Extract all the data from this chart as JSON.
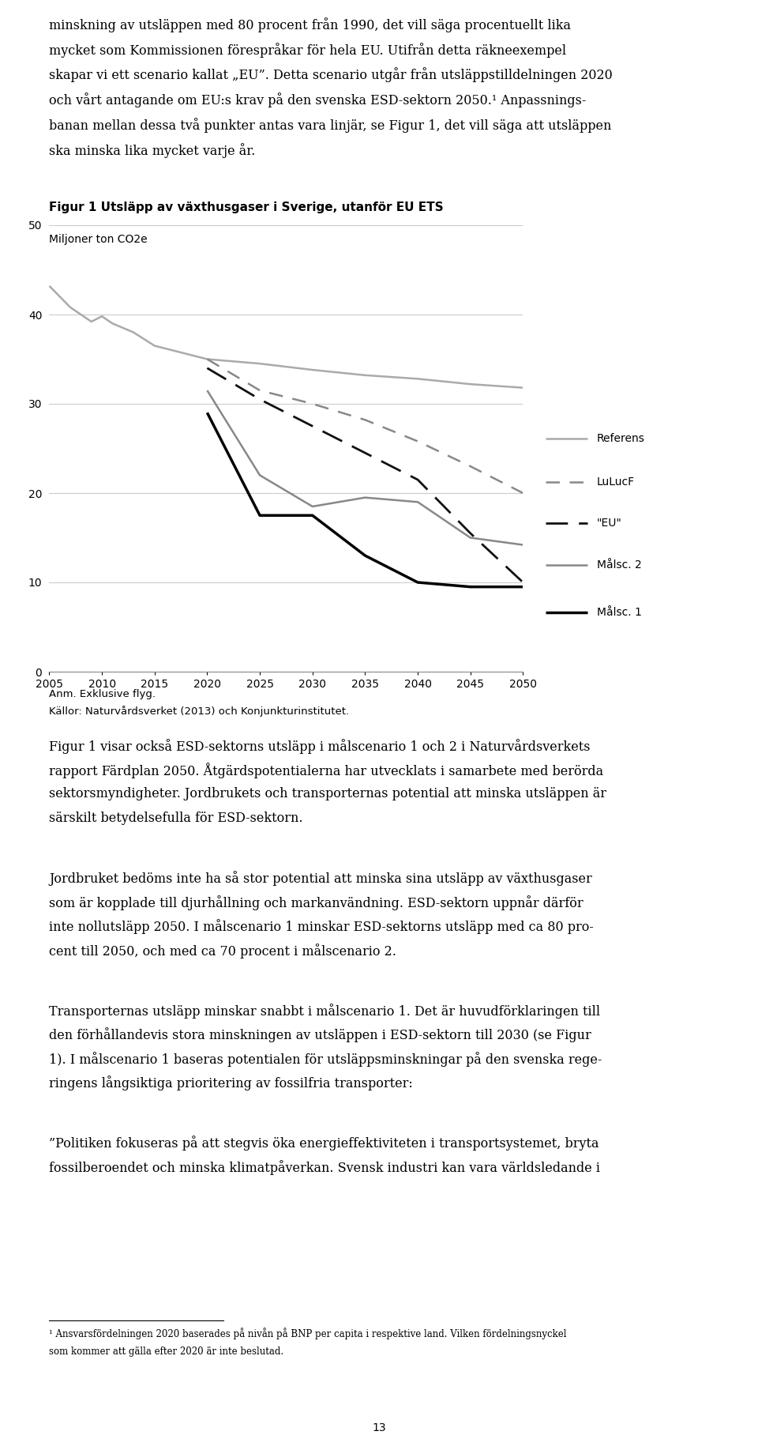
{
  "title": "Figur 1 Utsläpp av växthusgaser i Sverige, utanför EU ETS",
  "ylabel": "Miljoner ton CO2e",
  "note": "Anm. Exklusive flyg.",
  "source": "Källor: Naturvårdsverket (2013) och Konjunkturinstitutet.",
  "ylim": [
    0,
    50
  ],
  "xlim": [
    2005,
    2050
  ],
  "xticks": [
    2005,
    2010,
    2015,
    2020,
    2025,
    2030,
    2035,
    2040,
    2045,
    2050
  ],
  "yticks": [
    0,
    10,
    20,
    30,
    40,
    50
  ],
  "para_above": [
    "minskning av utsläppen med 80 procent från 1990, det vill säga procentuellt lika",
    "mycket som Kommissionen förespråkar för hela EU. Utifrån detta räkneexempel",
    "skapar vi ett scenario kallat „EU”. Detta scenario utgår från utsläppstilldelningen 2020",
    "och vårt antagande om EU:s krav på den svenska ESD-sektorn 2050.¹ Anpassnings-",
    "banan mellan dessa två punkter antas vara linjär, se Figur 1, det vill säga att utsläppen",
    "ska minska lika mycket varje år."
  ],
  "para_below_1": [
    "Figur 1 visar också ESD-sektorns utsläpp i målscenario 1 och 2 i Naturvårdsverkets",
    "rapport Färdplan 2050. Åtgärdspotentialerna har utvecklats i samarbete med berörda",
    "sektorsmyndigheter. Jordbrukets och transporternas potential att minska utsläppen är",
    "särskilt betydelsefulla för ESD-sektorn."
  ],
  "para_below_2": [
    "Jordbruket bedöms inte ha så stor potential att minska sina utsläpp av växthusgaser",
    "som är kopplade till djurhållning och markanvändning. ESD-sektorn uppnår därför",
    "inte nollutsläpp 2050. I målscenario 1 minskar ESD-sektorns utsläpp med ca 80 pro-",
    "cent till 2050, och med ca 70 procent i målscenario 2."
  ],
  "para_below_3": [
    "Transporternas utsläpp minskar snabbt i målscenario 1. Det är huvudförklaringen till",
    "den förhållandevis stora minskningen av utsläppen i ESD-sektorn till 2030 (se Figur",
    "1). I målscenario 1 baseras potentialen för utsläppsminskningar på den svenska rege-",
    "ringens långsiktiga prioritering av fossilfria transporter:"
  ],
  "para_below_4": [
    "”Politiken fokuseras på att stegvis öka energieffektiviteten i transportsystemet, bryta",
    "fossilberoendet och minska klimatpåverkan. Svensk industri kan vara världsledande i"
  ],
  "footnote": "¹ Ansvarsfördelningen 2020 baserades på nivån på BNP per capita i respektive land. Vilken fördelningsnyckel",
  "footnote2": "som kommer att gälla efter 2020 är inte beslutad.",
  "page_num": "13",
  "series": {
    "Referens": {
      "x": [
        2005,
        2007,
        2009,
        2010,
        2011,
        2013,
        2015,
        2020,
        2025,
        2030,
        2035,
        2040,
        2045,
        2050
      ],
      "y": [
        43.2,
        40.8,
        39.2,
        39.8,
        39.0,
        38.0,
        36.5,
        35.0,
        34.5,
        33.8,
        33.2,
        32.8,
        32.2,
        31.8
      ],
      "color": "#aaaaaa",
      "linewidth": 1.8
    },
    "LuLucF": {
      "x": [
        2020,
        2025,
        2030,
        2035,
        2040,
        2045,
        2050
      ],
      "y": [
        35.0,
        31.5,
        30.0,
        28.2,
        25.8,
        23.0,
        20.0
      ],
      "color": "#888888",
      "linewidth": 1.8,
      "dashes": [
        7,
        5
      ]
    },
    "EU": {
      "x": [
        2020,
        2025,
        2030,
        2035,
        2040,
        2045,
        2050
      ],
      "y": [
        34.0,
        30.5,
        27.5,
        24.5,
        21.5,
        15.5,
        10.0
      ],
      "color": "#111111",
      "linewidth": 2.0,
      "dashes": [
        10,
        5
      ]
    },
    "Malsc2": {
      "x": [
        2020,
        2025,
        2030,
        2035,
        2040,
        2045,
        2050
      ],
      "y": [
        31.5,
        22.0,
        18.5,
        19.5,
        19.0,
        15.0,
        14.2
      ],
      "color": "#888888",
      "linewidth": 1.8
    },
    "Malsc1": {
      "x": [
        2020,
        2025,
        2030,
        2035,
        2040,
        2045,
        2050
      ],
      "y": [
        29.0,
        17.5,
        17.5,
        13.0,
        10.0,
        9.5,
        9.5
      ],
      "color": "#000000",
      "linewidth": 2.5
    }
  },
  "legend_labels": [
    "Referens",
    "LuLucF",
    "\"EU\"",
    "Målsc. 2",
    "Målsc. 1"
  ],
  "legend_colors": [
    "#aaaaaa",
    "#888888",
    "#111111",
    "#888888",
    "#000000"
  ],
  "legend_dashes": [
    null,
    [
      7,
      5
    ],
    [
      10,
      5
    ],
    null,
    null
  ],
  "legend_linewidths": [
    1.8,
    1.8,
    2.0,
    1.8,
    2.5
  ],
  "background_color": "#ffffff",
  "text_color": "#000000"
}
